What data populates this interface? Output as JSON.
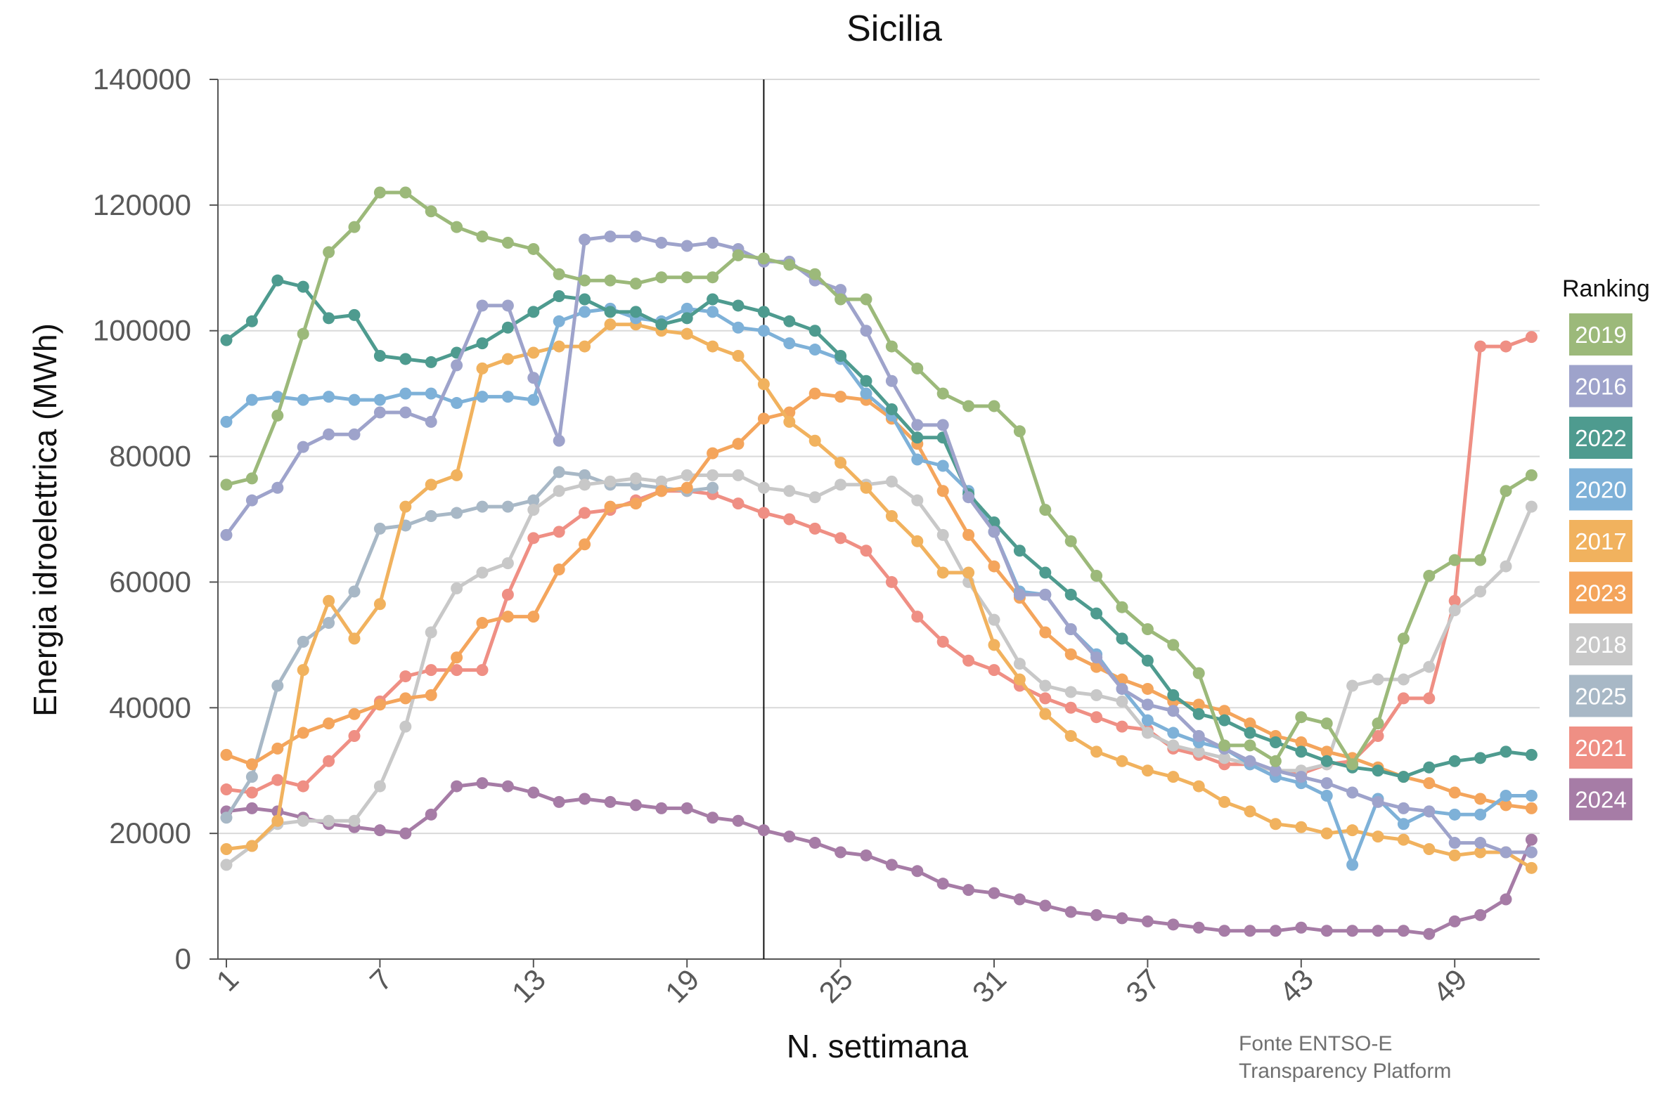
{
  "chart_data": {
    "type": "line",
    "title": "Sicilia",
    "xlabel": "N. settimana",
    "ylabel": "Energia idroelettrica (MWh)",
    "xlim": [
      1,
      52
    ],
    "ylim": [
      0,
      140000
    ],
    "x_ticks": [
      1,
      7,
      13,
      19,
      25,
      31,
      37,
      43,
      49
    ],
    "x_tick_labels": [
      "1",
      "7",
      "13",
      "19",
      "25",
      "31",
      "37",
      "43",
      "49"
    ],
    "y_ticks": [
      0,
      20000,
      40000,
      60000,
      80000,
      100000,
      120000,
      140000
    ],
    "y_tick_labels": [
      "0",
      "20000",
      "40000",
      "60000",
      "80000",
      "100000",
      "120000",
      "140000"
    ],
    "grid": true,
    "reference_line_x": 22,
    "legend": {
      "title": "Ranking",
      "position": "right"
    },
    "source": [
      "Fonte ENTSO-E",
      "Transparency Platform"
    ],
    "series": [
      {
        "name": "2019",
        "color": "#9cb97a",
        "values": [
          75500,
          76500,
          86500,
          99500,
          112500,
          116500,
          122000,
          122000,
          119000,
          116500,
          115000,
          114000,
          113000,
          109000,
          108000,
          108000,
          107500,
          108500,
          108500,
          108500,
          112000,
          111500,
          110500,
          109000,
          105000,
          105000,
          97500,
          94000,
          90000,
          88000,
          88000,
          84000,
          71500,
          66500,
          61000,
          56000,
          52500,
          50000,
          45500,
          34000,
          34000,
          31500,
          38500,
          37500,
          31000,
          37500,
          51000,
          61000,
          63500,
          63500,
          74500,
          77000
        ]
      },
      {
        "name": "2016",
        "color": "#9ea3cb",
        "values": [
          67500,
          73000,
          75000,
          81500,
          83500,
          83500,
          87000,
          87000,
          85500,
          94500,
          104000,
          104000,
          92500,
          82500,
          114500,
          115000,
          115000,
          114000,
          113500,
          114000,
          113000,
          111000,
          111000,
          108000,
          106500,
          100000,
          92000,
          85000,
          85000,
          73500,
          68000,
          58000,
          58000,
          52500,
          48000,
          43000,
          40500,
          39500,
          35500,
          33500,
          31500,
          30000,
          29000,
          28000,
          26500,
          25000,
          24000,
          23500,
          18500,
          18500,
          17000,
          17000
        ]
      },
      {
        "name": "2022",
        "color": "#4e9b8f",
        "values": [
          98500,
          101500,
          108000,
          107000,
          102000,
          102500,
          96000,
          95500,
          95000,
          96500,
          98000,
          100500,
          103000,
          105500,
          105000,
          103000,
          103000,
          101000,
          102000,
          105000,
          104000,
          103000,
          101500,
          100000,
          96000,
          92000,
          87500,
          83000,
          83000,
          74000,
          69500,
          65000,
          61500,
          58000,
          55000,
          51000,
          47500,
          42000,
          39000,
          38000,
          36000,
          34500,
          33000,
          31500,
          30500,
          30000,
          29000,
          30500,
          31500,
          32000,
          33000,
          32500
        ]
      },
      {
        "name": "2020",
        "color": "#7eb1d8",
        "values": [
          85500,
          89000,
          89500,
          89000,
          89500,
          89000,
          89000,
          90000,
          90000,
          88500,
          89500,
          89500,
          89000,
          101500,
          103000,
          103500,
          102000,
          101500,
          103500,
          103000,
          100500,
          100000,
          98000,
          97000,
          95500,
          90000,
          86500,
          79500,
          78500,
          74500,
          68000,
          58500,
          58000,
          52500,
          48500,
          43000,
          38000,
          36000,
          34500,
          33500,
          31000,
          29000,
          28000,
          26000,
          15000,
          25500,
          21500,
          23500,
          23000,
          23000,
          26000,
          26000
        ]
      },
      {
        "name": "2017",
        "color": "#f1b25e",
        "values": [
          17500,
          18000,
          22000,
          46000,
          57000,
          51000,
          56500,
          72000,
          75500,
          77000,
          94000,
          95500,
          96500,
          97500,
          97500,
          101000,
          101000,
          100000,
          99500,
          97500,
          96000,
          91500,
          85500,
          82500,
          79000,
          75000,
          70500,
          66500,
          61500,
          61500,
          50000,
          44500,
          39000,
          35500,
          33000,
          31500,
          30000,
          29000,
          27500,
          25000,
          23500,
          21500,
          21000,
          20000,
          20500,
          19500,
          19000,
          17500,
          16500,
          17000,
          17000,
          14500
        ]
      },
      {
        "name": "2023",
        "color": "#f4a55c",
        "values": [
          32500,
          31000,
          33500,
          36000,
          37500,
          39000,
          40500,
          41500,
          42000,
          48000,
          53500,
          54500,
          54500,
          62000,
          66000,
          72000,
          72500,
          74500,
          75000,
          80500,
          82000,
          86000,
          87000,
          90000,
          89500,
          89000,
          86000,
          82000,
          74500,
          67500,
          62500,
          57500,
          52000,
          48500,
          46500,
          44500,
          43000,
          41000,
          40500,
          39500,
          37500,
          35500,
          34500,
          33000,
          32000,
          30500,
          29000,
          28000,
          26500,
          25500,
          24500,
          24000
        ]
      },
      {
        "name": "2018",
        "color": "#c8c8c8",
        "values": [
          15000,
          18000,
          21500,
          22000,
          22000,
          22000,
          27500,
          37000,
          52000,
          59000,
          61500,
          63000,
          71500,
          74500,
          75500,
          76000,
          76500,
          76000,
          77000,
          77000,
          77000,
          75000,
          74500,
          73500,
          75500,
          75500,
          76000,
          73000,
          67500,
          60000,
          54000,
          47000,
          43500,
          42500,
          42000,
          41000,
          36000,
          34000,
          33000,
          32000,
          31000,
          30000,
          30000,
          31000,
          43500,
          44500,
          44500,
          46500,
          55500,
          58500,
          62500,
          72000
        ]
      },
      {
        "name": "2025",
        "color": "#a8b8c6",
        "values": [
          22500,
          29000,
          43500,
          50500,
          53500,
          58500,
          68500,
          69000,
          70500,
          71000,
          72000,
          72000,
          73000,
          77500,
          77000,
          75500,
          75500,
          75000,
          74500,
          75000
        ]
      },
      {
        "name": "2021",
        "color": "#ef8f84",
        "values": [
          27000,
          26500,
          28500,
          27500,
          31500,
          35500,
          41000,
          45000,
          46000,
          46000,
          46000,
          58000,
          67000,
          68000,
          71000,
          71500,
          73000,
          74500,
          74500,
          74000,
          72500,
          71000,
          70000,
          68500,
          67000,
          65000,
          60000,
          54500,
          50500,
          47500,
          46000,
          43500,
          41500,
          40000,
          38500,
          37000,
          36500,
          33500,
          32500,
          31000,
          31000,
          30000,
          29500,
          31000,
          31500,
          35500,
          41500,
          41500,
          57000,
          97500,
          97500,
          99000
        ]
      },
      {
        "name": "2024",
        "color": "#a67ca6",
        "values": [
          23500,
          24000,
          23500,
          22500,
          21500,
          21000,
          20500,
          20000,
          23000,
          27500,
          28000,
          27500,
          26500,
          25000,
          25500,
          25000,
          24500,
          24000,
          24000,
          22500,
          22000,
          20500,
          19500,
          18500,
          17000,
          16500,
          15000,
          14000,
          12000,
          11000,
          10500,
          9500,
          8500,
          7500,
          7000,
          6500,
          6000,
          5500,
          5000,
          4500,
          4500,
          4500,
          5000,
          4500,
          4500,
          4500,
          4500,
          4000,
          6000,
          7000,
          9500,
          19000
        ]
      }
    ]
  }
}
